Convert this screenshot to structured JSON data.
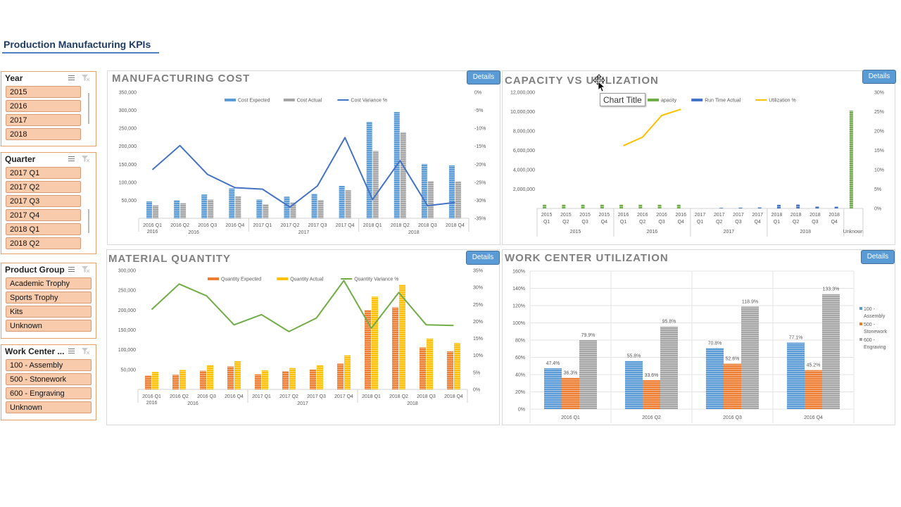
{
  "page_title": "Production Manufacturing KPIs",
  "details_label": "Details",
  "slicers": [
    {
      "id": "year",
      "title": "Year",
      "items": [
        "2015",
        "2016",
        "2017",
        "2018"
      ]
    },
    {
      "id": "quarter",
      "title": "Quarter",
      "items": [
        "2017 Q1",
        "2017 Q2",
        "2017 Q3",
        "2017 Q4",
        "2018 Q1",
        "2018 Q2"
      ]
    },
    {
      "id": "product",
      "title": "Product Group",
      "items": [
        "Academic Trophy",
        "Sports Trophy",
        "Kits",
        "Unknown"
      ]
    },
    {
      "id": "workcenter",
      "title": "Work Center ...",
      "items": [
        "100 - Assembly",
        "500 - Stonework",
        "600 - Engraving",
        "Unknown"
      ]
    }
  ],
  "tooltip": "Chart Title",
  "chart_data": [
    {
      "id": "manufacturing_cost",
      "type": "bar",
      "title": "MANUFACTURING COST",
      "categories": [
        "2016 Q1",
        "2016 Q2",
        "2016 Q3",
        "2016 Q4",
        "2017 Q1",
        "2017 Q2",
        "2017 Q3",
        "2017 Q4",
        "2018 Q1",
        "2018 Q2",
        "2018 Q3",
        "2018 Q4"
      ],
      "groups": [
        {
          "label": "2016",
          "span": 4
        },
        {
          "label": "2017",
          "span": 4
        },
        {
          "label": "2018",
          "span": 4
        }
      ],
      "series": [
        {
          "name": "Cost Expected",
          "kind": "bar",
          "color": "#5b9bd5",
          "values": [
            47000,
            50000,
            66000,
            83000,
            52000,
            60000,
            68000,
            90000,
            268000,
            295000,
            151000,
            147000
          ]
        },
        {
          "name": "Cost Actual",
          "kind": "bar",
          "color": "#a5a5a5",
          "values": [
            36000,
            42000,
            52000,
            61000,
            39000,
            44000,
            51000,
            78000,
            187000,
            239000,
            103000,
            102000
          ]
        },
        {
          "name": "Cost Variance %",
          "kind": "line",
          "axis": "right",
          "color": "#4472c4",
          "values": [
            -21.5,
            -14.8,
            -22.8,
            -26.5,
            -26.9,
            -31.9,
            -26.0,
            -12.6,
            -29.8,
            -19.0,
            -31.5,
            -30.6
          ]
        }
      ],
      "ylim": [
        0,
        350000
      ],
      "yticks": [
        50000,
        100000,
        150000,
        200000,
        250000,
        300000,
        350000
      ],
      "ytick_labels": [
        "50,000",
        "100,000",
        "150,000",
        "200,000",
        "250,000",
        "300,000",
        "350,000"
      ],
      "y2lim": [
        -35,
        0
      ],
      "y2ticks": [
        0,
        -5,
        -10,
        -15,
        -20,
        -25,
        -30,
        -35
      ],
      "y2tick_labels": [
        "0%",
        "-5%",
        "-10%",
        "-15%",
        "-20%",
        "-25%",
        "-30%",
        "-35%"
      ],
      "legend": "top"
    },
    {
      "id": "capacity_utilization",
      "type": "bar",
      "title": "CAPACITY VS UTILIZATION",
      "categories": [
        "2015 Q1",
        "2015 Q2",
        "2015 Q3",
        "2015 Q4",
        "2016 Q1",
        "2016 Q2",
        "2016 Q3",
        "2016 Q4",
        "2017 Q1",
        "2017 Q2",
        "2017 Q3",
        "2017 Q4",
        "2018 Q1",
        "2018 Q2",
        "2018 Q3",
        "2018 Q4",
        "Unknown"
      ],
      "tick_lines": [
        [
          "2015",
          "Q1"
        ],
        [
          "2015",
          "Q2"
        ],
        [
          "2015",
          "Q3"
        ],
        [
          "2015",
          "Q4"
        ],
        [
          "2016",
          "Q1"
        ],
        [
          "2016",
          "Q2"
        ],
        [
          "2016",
          "Q3"
        ],
        [
          "2016",
          "Q4"
        ],
        [
          "2017",
          "Q1"
        ],
        [
          "2017",
          "Q2"
        ],
        [
          "2017",
          "Q3"
        ],
        [
          "2017",
          "Q4"
        ],
        [
          "2018",
          "Q1"
        ],
        [
          "2018",
          "Q2"
        ],
        [
          "2018",
          "Q3"
        ],
        [
          "2018",
          "Q4"
        ]
      ],
      "groups": [
        {
          "label": "2015",
          "span": 4
        },
        {
          "label": "2016",
          "span": 4
        },
        {
          "label": "2017",
          "span": 4
        },
        {
          "label": "2018",
          "span": 4
        },
        {
          "label": "Unknown",
          "span": 1
        }
      ],
      "series": [
        {
          "name": "Run Time Capacity",
          "display_name": "apacity",
          "kind": "bar",
          "color": "#70ad47",
          "values": [
            400000,
            400000,
            400000,
            400000,
            400000,
            400000,
            400000,
            400000,
            0,
            0,
            0,
            0,
            0,
            0,
            0,
            0,
            10100000
          ]
        },
        {
          "name": "Run Time Actual",
          "kind": "bar",
          "color": "#4472c4",
          "values": [
            0,
            0,
            0,
            0,
            0,
            0,
            0,
            0,
            0,
            60000,
            80000,
            100000,
            380000,
            420000,
            220000,
            200000,
            0
          ]
        },
        {
          "name": "Utilization %",
          "kind": "line",
          "axis": "right",
          "color": "#ffc000",
          "values": [
            null,
            null,
            null,
            null,
            16.2,
            18.4,
            24.0,
            25.6,
            null,
            null,
            null,
            null,
            null,
            null,
            null,
            null,
            null
          ]
        }
      ],
      "ylim": [
        0,
        12000000
      ],
      "yticks": [
        2000000,
        4000000,
        6000000,
        8000000,
        10000000,
        12000000
      ],
      "ytick_labels": [
        "2,000,000",
        "4,000,000",
        "6,000,000",
        "8,000,000",
        "10,000,000",
        "12,000,000"
      ],
      "y2lim": [
        0,
        30
      ],
      "y2ticks": [
        0,
        5,
        10,
        15,
        20,
        25,
        30
      ],
      "y2tick_labels": [
        "0%",
        "5%",
        "10%",
        "15%",
        "20%",
        "25%",
        "30%"
      ],
      "legend": "top"
    },
    {
      "id": "material_quantity",
      "type": "bar",
      "title": "MATERIAL QUANTITY",
      "categories": [
        "2016 Q1",
        "2016 Q2",
        "2016 Q3",
        "2016 Q4",
        "2017 Q1",
        "2017 Q2",
        "2017 Q3",
        "2017 Q4",
        "2018 Q1",
        "2018 Q2",
        "2018 Q3",
        "2018 Q4"
      ],
      "groups": [
        {
          "label": "2016",
          "span": 4
        },
        {
          "label": "2017",
          "span": 4
        },
        {
          "label": "2018",
          "span": 4
        }
      ],
      "series": [
        {
          "name": "Quantity Expected",
          "kind": "bar",
          "color": "#ed7d31",
          "values": [
            35000,
            37000,
            47000,
            58000,
            38000,
            46000,
            50000,
            65000,
            200000,
            207000,
            106000,
            96000
          ]
        },
        {
          "name": "Quantity Actual",
          "kind": "bar",
          "color": "#ffc000",
          "values": [
            44000,
            49000,
            61000,
            71000,
            48000,
            54000,
            61000,
            86000,
            234000,
            264000,
            128000,
            117000
          ]
        },
        {
          "name": "Quantity Variance %",
          "kind": "line",
          "axis": "right",
          "color": "#70ad47",
          "values": [
            23.5,
            31.0,
            27.5,
            19.0,
            22.0,
            17.0,
            21.0,
            32.0,
            18.0,
            28.5,
            19.0,
            18.8
          ]
        }
      ],
      "ylim": [
        0,
        300000
      ],
      "yticks": [
        50000,
        100000,
        150000,
        200000,
        250000,
        300000
      ],
      "ytick_labels": [
        "50,000",
        "100,000",
        "150,000",
        "200,000",
        "250,000",
        "300,000"
      ],
      "y2lim": [
        0,
        35
      ],
      "y2ticks": [
        0,
        5,
        10,
        15,
        20,
        25,
        30,
        35
      ],
      "y2tick_labels": [
        "0%",
        "5%",
        "10%",
        "15%",
        "20%",
        "25%",
        "30%",
        "35%"
      ],
      "legend": "top"
    },
    {
      "id": "work_center_utilization",
      "type": "bar",
      "title": "WORK CENTER UTILIZATION",
      "categories": [
        "2016 Q1",
        "2016 Q2",
        "2016 Q3",
        "2016 Q4"
      ],
      "series": [
        {
          "name": "100 - Assembly",
          "color": "#5b9bd5",
          "values": [
            47.4,
            55.8,
            70.8,
            77.1
          ],
          "labels": [
            "47.4%",
            "55.8%",
            "70.8%",
            "77.1%"
          ]
        },
        {
          "name": "500 - Stonework",
          "color": "#ed7d31",
          "values": [
            36.3,
            33.6,
            52.6,
            45.2
          ],
          "labels": [
            "36.3%",
            "33.6%",
            "52.6%",
            "45.2%"
          ]
        },
        {
          "name": "600 - Engraving",
          "color": "#a5a5a5",
          "values": [
            79.9,
            95.8,
            118.9,
            133.3
          ],
          "labels": [
            "79.9%",
            "95.8%",
            "118.9%",
            "133.3%"
          ]
        }
      ],
      "ylim": [
        0,
        160
      ],
      "yticks": [
        0,
        20,
        40,
        60,
        80,
        100,
        120,
        140,
        160
      ],
      "ytick_labels": [
        "0%",
        "20%",
        "40%",
        "60%",
        "80%",
        "100%",
        "120%",
        "140%",
        "160%"
      ],
      "legend": "right"
    }
  ]
}
